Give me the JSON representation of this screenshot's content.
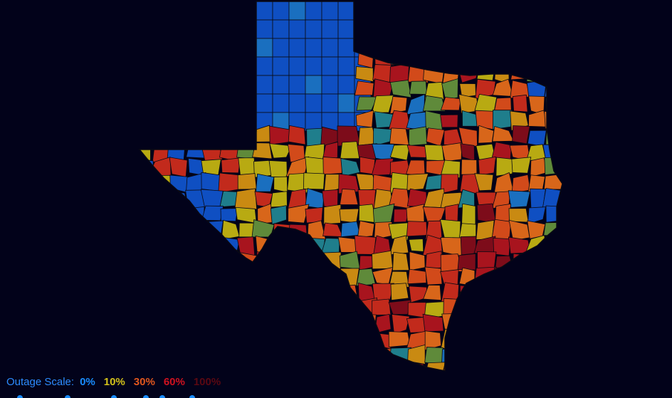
{
  "legend": {
    "label": "Outage Scale:",
    "steps": [
      {
        "text": "0%",
        "value": 0,
        "color": "#1a8cff"
      },
      {
        "text": "10%",
        "value": 10,
        "color": "#d4c21a"
      },
      {
        "text": "30%",
        "value": 30,
        "color": "#e2571e"
      },
      {
        "text": "60%",
        "value": 60,
        "color": "#d0121f"
      },
      {
        "text": "100%",
        "value": 100,
        "color": "#5a0812"
      }
    ]
  },
  "colors": {
    "background": "#02021a",
    "county_border": "#0a0a14",
    "palette": [
      "#0f4fc2",
      "#1a6fbf",
      "#1f7e8c",
      "#5f8a3a",
      "#b8aa12",
      "#c98a12",
      "#d8661a",
      "#d24a1a",
      "#c22a1c",
      "#a8141e",
      "#7d0c1a"
    ]
  },
  "map": {
    "region": "Texas counties",
    "seed": 42
  }
}
